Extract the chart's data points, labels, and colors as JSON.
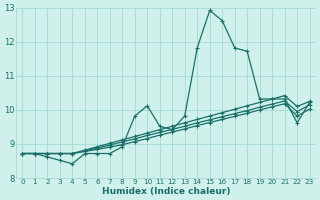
{
  "xlabel": "Humidex (Indice chaleur)",
  "bg_color": "#cff0eb",
  "grid_color": "#aaddd8",
  "line_color": "#1a7068",
  "xlim": [
    -0.5,
    23.5
  ],
  "ylim": [
    8,
    13
  ],
  "xticks": [
    0,
    1,
    2,
    3,
    4,
    5,
    6,
    7,
    8,
    9,
    10,
    11,
    12,
    13,
    14,
    15,
    16,
    17,
    18,
    19,
    20,
    21,
    22,
    23
  ],
  "yticks": [
    8,
    9,
    10,
    11,
    12,
    13
  ],
  "series": [
    [
      8.72,
      8.72,
      8.62,
      8.52,
      8.42,
      8.72,
      8.72,
      8.72,
      8.92,
      9.82,
      10.12,
      9.52,
      9.42,
      9.82,
      11.82,
      12.92,
      12.62,
      11.82,
      11.72,
      10.32,
      10.32,
      10.32,
      9.62,
      10.22
    ],
    [
      8.72,
      8.72,
      8.72,
      8.72,
      8.72,
      8.82,
      8.92,
      9.02,
      9.12,
      9.22,
      9.32,
      9.42,
      9.52,
      9.62,
      9.72,
      9.82,
      9.92,
      10.02,
      10.12,
      10.22,
      10.32,
      10.42,
      10.1,
      10.25
    ],
    [
      8.72,
      8.72,
      8.72,
      8.72,
      8.72,
      8.8,
      8.88,
      8.97,
      9.06,
      9.15,
      9.25,
      9.34,
      9.43,
      9.52,
      9.62,
      9.71,
      9.8,
      9.89,
      9.98,
      10.08,
      10.17,
      10.26,
      9.95,
      10.15
    ],
    [
      8.72,
      8.72,
      8.72,
      8.72,
      8.72,
      8.78,
      8.84,
      8.91,
      8.98,
      9.07,
      9.16,
      9.26,
      9.35,
      9.44,
      9.54,
      9.63,
      9.72,
      9.81,
      9.9,
      10.0,
      10.09,
      10.18,
      9.82,
      10.02
    ]
  ]
}
